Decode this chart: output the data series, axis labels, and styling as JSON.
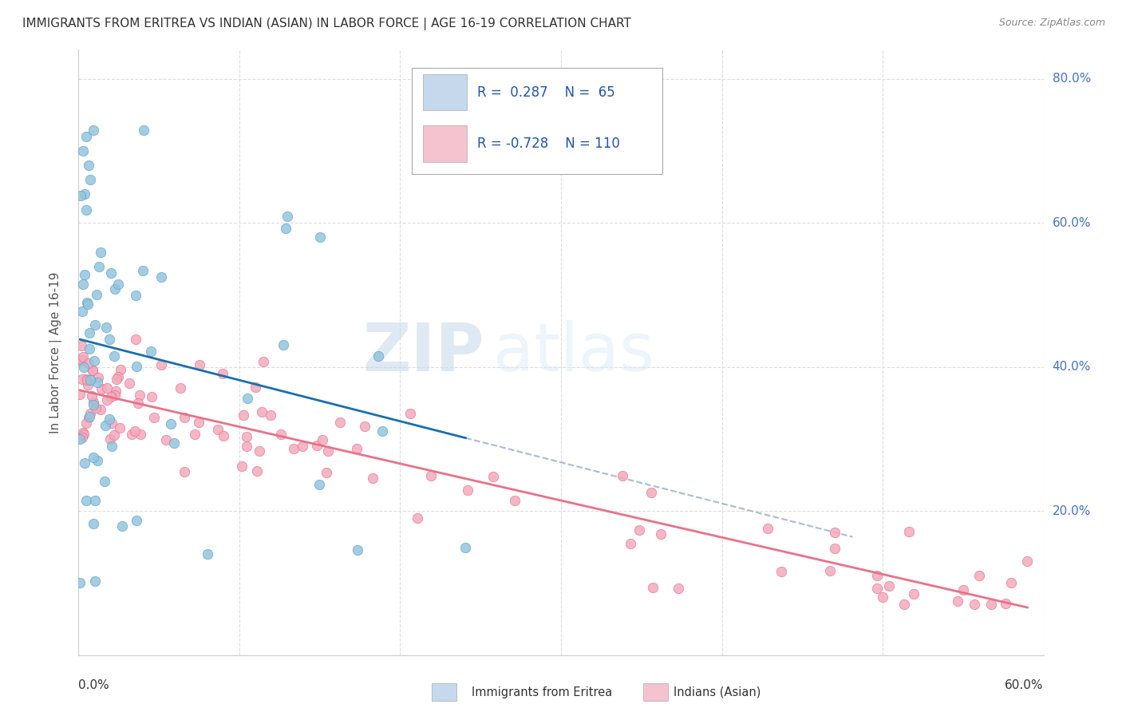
{
  "title": "IMMIGRANTS FROM ERITREA VS INDIAN (ASIAN) IN LABOR FORCE | AGE 16-19 CORRELATION CHART",
  "source": "Source: ZipAtlas.com",
  "ylabel": "In Labor Force | Age 16-19",
  "eritrea_R": 0.287,
  "eritrea_N": 65,
  "indian_R": -0.728,
  "indian_N": 110,
  "eritrea_color": "#92c5de",
  "eritrea_edge_color": "#5a9fc4",
  "indian_color": "#f4a9bb",
  "indian_edge_color": "#e07090",
  "eritrea_line_color": "#1a6faf",
  "eritrea_dash_color": "#aabbd4",
  "indian_line_color": "#e8728a",
  "legend_fill_eritrea": "#c6d9ec",
  "legend_fill_indian": "#f5c2cf",
  "legend_edge": "#aaaaaa",
  "watermark_zip": "ZIP",
  "watermark_atlas": "atlas",
  "grid_color": "#dddddd",
  "background": "#ffffff",
  "xlim": [
    0.0,
    0.6
  ],
  "ylim": [
    0.0,
    0.84
  ],
  "ytick_vals": [
    0.0,
    0.2,
    0.4,
    0.6,
    0.8
  ],
  "ytick_labels": [
    "",
    "20.0%",
    "40.0%",
    "60.0%",
    "80.0%"
  ],
  "xtick_left_label": "0.0%",
  "xtick_right_label": "60.0%"
}
